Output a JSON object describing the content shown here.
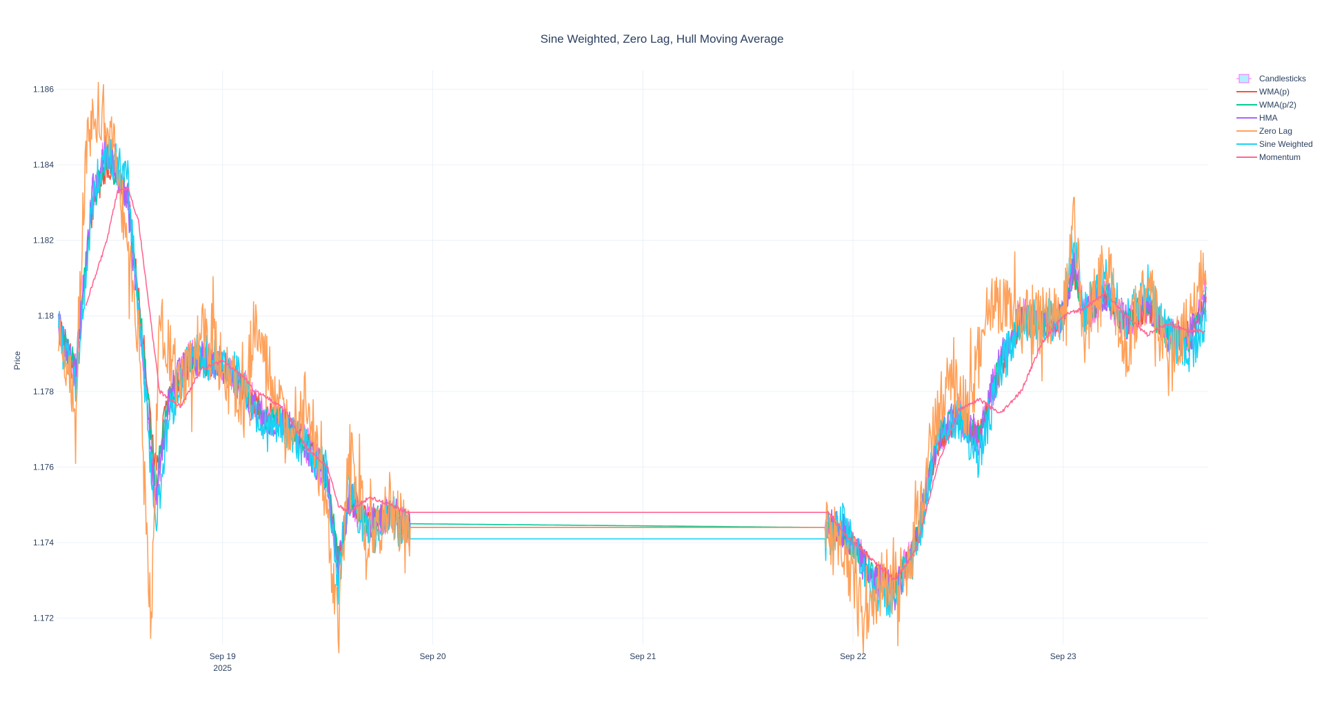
{
  "chart_data": {
    "type": "line",
    "title": "Sine Weighted, Zero Lag, Hull Moving Average",
    "ylabel": "Price",
    "xlabel": "",
    "ylim": [
      1.1713,
      1.1865
    ],
    "y_ticks": [
      "1.172",
      "1.174",
      "1.176",
      "1.178",
      "1.18",
      "1.182",
      "1.184",
      "1.186"
    ],
    "y_tick_values": [
      1.172,
      1.174,
      1.176,
      1.178,
      1.18,
      1.182,
      1.184,
      1.186
    ],
    "x_ticks": [
      {
        "label": "Sep 19",
        "sub": "2025",
        "day": 19
      },
      {
        "label": "Sep 20",
        "sub": "",
        "day": 20
      },
      {
        "label": "Sep 21",
        "sub": "",
        "day": 21
      },
      {
        "label": "Sep 22",
        "sub": "",
        "day": 22
      },
      {
        "label": "Sep 23",
        "sub": "",
        "day": 23
      }
    ],
    "xlim_days": [
      18.21,
      23.69
    ],
    "grid": true,
    "legend_position": "top-right",
    "series": [
      {
        "name": "Candlesticks",
        "color": "#ff66ff",
        "fill": "#b3f0ff",
        "kind": "candle"
      },
      {
        "name": "WMA(p)",
        "color": "#EF553B",
        "kind": "line"
      },
      {
        "name": "WMA(p/2)",
        "color": "#00CC96",
        "kind": "line"
      },
      {
        "name": "HMA",
        "color": "#AB63FA",
        "kind": "line"
      },
      {
        "name": "Zero Lag",
        "color": "#FFA15A",
        "kind": "line"
      },
      {
        "name": "Sine Weighted",
        "color": "#19D3F3",
        "kind": "line"
      },
      {
        "name": "Momentum",
        "color": "#FF6692",
        "kind": "line"
      }
    ],
    "key_points": {
      "Momentum": [
        [
          18.35,
          1.1803
        ],
        [
          18.45,
          1.182
        ],
        [
          18.5,
          1.1833
        ],
        [
          18.55,
          1.1834
        ],
        [
          18.6,
          1.1825
        ],
        [
          18.7,
          1.178
        ],
        [
          18.8,
          1.1776
        ],
        [
          18.9,
          1.1786
        ],
        [
          19.0,
          1.1788
        ],
        [
          19.1,
          1.1784
        ],
        [
          19.15,
          1.178
        ],
        [
          19.2,
          1.1779
        ],
        [
          19.3,
          1.1775
        ],
        [
          19.4,
          1.1765
        ],
        [
          19.5,
          1.176
        ],
        [
          19.55,
          1.175
        ],
        [
          19.6,
          1.1748
        ],
        [
          19.7,
          1.1752
        ],
        [
          19.8,
          1.175
        ],
        [
          19.88,
          1.1748
        ],
        [
          21.88,
          1.1748
        ],
        [
          21.95,
          1.1743
        ],
        [
          22.1,
          1.1735
        ],
        [
          22.2,
          1.173
        ],
        [
          22.3,
          1.1738
        ],
        [
          22.4,
          1.176
        ],
        [
          22.5,
          1.1775
        ],
        [
          22.6,
          1.1778
        ],
        [
          22.7,
          1.1774
        ],
        [
          22.8,
          1.178
        ],
        [
          22.9,
          1.1793
        ],
        [
          23.0,
          1.18
        ],
        [
          23.1,
          1.1802
        ],
        [
          23.2,
          1.1806
        ],
        [
          23.3,
          1.18
        ],
        [
          23.4,
          1.1795
        ],
        [
          23.5,
          1.1798
        ],
        [
          23.6,
          1.1796
        ],
        [
          23.68,
          1.1796
        ]
      ],
      "Sine Weighted": [
        [
          18.22,
          1.1796
        ],
        [
          18.3,
          1.178
        ],
        [
          18.38,
          1.183
        ],
        [
          18.45,
          1.1845
        ],
        [
          18.55,
          1.1835
        ],
        [
          18.62,
          1.179
        ],
        [
          18.68,
          1.1745
        ],
        [
          18.75,
          1.1775
        ],
        [
          18.85,
          1.179
        ],
        [
          19.0,
          1.1788
        ],
        [
          19.1,
          1.1782
        ],
        [
          19.2,
          1.177
        ],
        [
          19.3,
          1.177
        ],
        [
          19.4,
          1.1765
        ],
        [
          19.5,
          1.1758
        ],
        [
          19.55,
          1.1728
        ],
        [
          19.6,
          1.1755
        ],
        [
          19.7,
          1.174
        ],
        [
          19.8,
          1.1748
        ],
        [
          19.88,
          1.1741
        ],
        [
          21.88,
          1.1741
        ],
        [
          21.95,
          1.1745
        ],
        [
          22.1,
          1.1728
        ],
        [
          22.2,
          1.1725
        ],
        [
          22.3,
          1.1738
        ],
        [
          22.4,
          1.1768
        ],
        [
          22.5,
          1.1774
        ],
        [
          22.6,
          1.1762
        ],
        [
          22.7,
          1.1785
        ],
        [
          22.8,
          1.18
        ],
        [
          22.9,
          1.1798
        ],
        [
          23.0,
          1.18
        ],
        [
          23.05,
          1.1822
        ],
        [
          23.1,
          1.18
        ],
        [
          23.2,
          1.181
        ],
        [
          23.3,
          1.1798
        ],
        [
          23.4,
          1.1808
        ],
        [
          23.5,
          1.1795
        ],
        [
          23.6,
          1.179
        ],
        [
          23.68,
          1.1798
        ]
      ],
      "Zero Lag": [
        [
          18.22,
          1.1797
        ],
        [
          18.3,
          1.1778
        ],
        [
          18.35,
          1.1845
        ],
        [
          18.42,
          1.1855
        ],
        [
          18.5,
          1.184
        ],
        [
          18.6,
          1.1795
        ],
        [
          18.66,
          1.1715
        ],
        [
          18.7,
          1.18
        ],
        [
          18.8,
          1.178
        ],
        [
          18.9,
          1.1795
        ],
        [
          19.0,
          1.1788
        ],
        [
          19.1,
          1.1775
        ],
        [
          19.15,
          1.1797
        ],
        [
          19.3,
          1.177
        ],
        [
          19.4,
          1.178
        ],
        [
          19.5,
          1.1745
        ],
        [
          19.55,
          1.1715
        ],
        [
          19.6,
          1.1765
        ],
        [
          19.7,
          1.174
        ],
        [
          19.8,
          1.1748
        ],
        [
          19.88,
          1.1744
        ],
        [
          21.88,
          1.1744
        ],
        [
          21.95,
          1.1738
        ],
        [
          22.05,
          1.1722
        ],
        [
          22.15,
          1.173
        ],
        [
          22.25,
          1.173
        ],
        [
          22.35,
          1.176
        ],
        [
          22.45,
          1.1785
        ],
        [
          22.55,
          1.1775
        ],
        [
          22.65,
          1.1805
        ],
        [
          22.75,
          1.18
        ],
        [
          22.85,
          1.1798
        ],
        [
          23.0,
          1.18
        ],
        [
          23.05,
          1.1828
        ],
        [
          23.1,
          1.1795
        ],
        [
          23.2,
          1.1815
        ],
        [
          23.3,
          1.179
        ],
        [
          23.4,
          1.1812
        ],
        [
          23.5,
          1.1785
        ],
        [
          23.6,
          1.18
        ],
        [
          23.68,
          1.1815
        ]
      ],
      "HMA": [
        [
          18.22,
          1.1797
        ],
        [
          18.3,
          1.1785
        ],
        [
          18.38,
          1.1832
        ],
        [
          18.45,
          1.1845
        ],
        [
          18.55,
          1.183
        ],
        [
          18.62,
          1.179
        ],
        [
          18.68,
          1.175
        ],
        [
          18.75,
          1.178
        ],
        [
          18.85,
          1.1789
        ],
        [
          19.0,
          1.1787
        ],
        [
          19.1,
          1.178
        ],
        [
          19.2,
          1.1772
        ],
        [
          19.3,
          1.1772
        ],
        [
          19.4,
          1.1766
        ],
        [
          19.5,
          1.1756
        ],
        [
          19.55,
          1.1732
        ],
        [
          19.6,
          1.1752
        ],
        [
          19.7,
          1.1745
        ],
        [
          19.8,
          1.1748
        ],
        [
          19.88,
          1.1744
        ],
        [
          21.88,
          1.1744
        ],
        [
          21.95,
          1.1743
        ],
        [
          22.1,
          1.173
        ],
        [
          22.2,
          1.1727
        ],
        [
          22.3,
          1.174
        ],
        [
          22.4,
          1.1768
        ],
        [
          22.5,
          1.1774
        ],
        [
          22.6,
          1.1768
        ],
        [
          22.7,
          1.1788
        ],
        [
          22.8,
          1.18
        ],
        [
          22.9,
          1.1798
        ],
        [
          23.0,
          1.18
        ],
        [
          23.05,
          1.1815
        ],
        [
          23.1,
          1.18
        ],
        [
          23.2,
          1.1806
        ],
        [
          23.3,
          1.1798
        ],
        [
          23.4,
          1.1804
        ],
        [
          23.5,
          1.1795
        ],
        [
          23.6,
          1.1794
        ],
        [
          23.68,
          1.1805
        ]
      ],
      "WMA(p)": [
        [
          18.22,
          1.1797
        ],
        [
          18.3,
          1.1787
        ],
        [
          18.38,
          1.1828
        ],
        [
          18.45,
          1.184
        ],
        [
          18.55,
          1.1832
        ],
        [
          18.62,
          1.1795
        ],
        [
          18.68,
          1.176
        ],
        [
          18.75,
          1.178
        ],
        [
          18.85,
          1.1788
        ],
        [
          19.0,
          1.1787
        ],
        [
          19.1,
          1.178
        ],
        [
          19.2,
          1.1774
        ],
        [
          19.3,
          1.1772
        ],
        [
          19.4,
          1.1767
        ],
        [
          19.5,
          1.1758
        ],
        [
          19.55,
          1.1736
        ],
        [
          19.6,
          1.175
        ],
        [
          19.7,
          1.1746
        ],
        [
          19.8,
          1.1748
        ],
        [
          19.88,
          1.1744
        ],
        [
          21.88,
          1.1744
        ],
        [
          21.95,
          1.1743
        ],
        [
          22.1,
          1.1732
        ],
        [
          22.2,
          1.1729
        ],
        [
          22.3,
          1.174
        ],
        [
          22.4,
          1.1766
        ],
        [
          22.5,
          1.1773
        ],
        [
          22.6,
          1.1769
        ],
        [
          22.7,
          1.1786
        ],
        [
          22.8,
          1.1799
        ],
        [
          22.9,
          1.1798
        ],
        [
          23.0,
          1.18
        ],
        [
          23.05,
          1.1812
        ],
        [
          23.1,
          1.1801
        ],
        [
          23.2,
          1.1805
        ],
        [
          23.3,
          1.1798
        ],
        [
          23.4,
          1.1802
        ],
        [
          23.5,
          1.1796
        ],
        [
          23.6,
          1.1795
        ],
        [
          23.68,
          1.1803
        ]
      ],
      "WMA(p/2)": [
        [
          18.22,
          1.1797
        ],
        [
          18.3,
          1.1786
        ],
        [
          18.38,
          1.183
        ],
        [
          18.45,
          1.1842
        ],
        [
          18.55,
          1.1831
        ],
        [
          18.62,
          1.1793
        ],
        [
          18.68,
          1.1755
        ],
        [
          18.75,
          1.178
        ],
        [
          18.85,
          1.1789
        ],
        [
          19.0,
          1.1787
        ],
        [
          19.1,
          1.1781
        ],
        [
          19.2,
          1.1773
        ],
        [
          19.3,
          1.1772
        ],
        [
          19.4,
          1.1766
        ],
        [
          19.5,
          1.1757
        ],
        [
          19.55,
          1.1734
        ],
        [
          19.6,
          1.1751
        ],
        [
          19.7,
          1.1745
        ],
        [
          19.8,
          1.1748
        ],
        [
          19.88,
          1.1745
        ],
        [
          21.88,
          1.1744
        ],
        [
          21.95,
          1.1743
        ],
        [
          22.1,
          1.1731
        ],
        [
          22.2,
          1.1728
        ],
        [
          22.3,
          1.174
        ],
        [
          22.4,
          1.1767
        ],
        [
          22.5,
          1.1774
        ],
        [
          22.6,
          1.1768
        ],
        [
          22.7,
          1.1787
        ],
        [
          22.8,
          1.18
        ],
        [
          22.9,
          1.1798
        ],
        [
          23.0,
          1.18
        ],
        [
          23.05,
          1.1813
        ],
        [
          23.1,
          1.18
        ],
        [
          23.2,
          1.1806
        ],
        [
          23.3,
          1.1798
        ],
        [
          23.4,
          1.1803
        ],
        [
          23.5,
          1.1795
        ],
        [
          23.6,
          1.1794
        ],
        [
          23.68,
          1.1804
        ]
      ],
      "Candlesticks": [
        [
          18.22,
          1.1797
        ],
        [
          18.3,
          1.1785
        ],
        [
          18.38,
          1.1832
        ],
        [
          18.45,
          1.1845
        ],
        [
          18.55,
          1.1832
        ],
        [
          18.62,
          1.1792
        ],
        [
          18.68,
          1.1752
        ],
        [
          18.75,
          1.178
        ],
        [
          18.85,
          1.1789
        ],
        [
          19.0,
          1.1787
        ],
        [
          19.1,
          1.1781
        ],
        [
          19.2,
          1.1773
        ],
        [
          19.3,
          1.1772
        ],
        [
          19.4,
          1.1766
        ],
        [
          19.5,
          1.1757
        ],
        [
          19.55,
          1.1733
        ],
        [
          19.6,
          1.1752
        ],
        [
          19.7,
          1.1745
        ],
        [
          19.8,
          1.1748
        ],
        [
          19.88,
          1.1744
        ],
        [
          21.88,
          1.1744
        ],
        [
          21.95,
          1.1743
        ],
        [
          22.1,
          1.1731
        ],
        [
          22.2,
          1.1728
        ],
        [
          22.3,
          1.174
        ],
        [
          22.4,
          1.1767
        ],
        [
          22.5,
          1.1774
        ],
        [
          22.6,
          1.1768
        ],
        [
          22.7,
          1.1787
        ],
        [
          22.8,
          1.18
        ],
        [
          22.9,
          1.1798
        ],
        [
          23.0,
          1.18
        ],
        [
          23.05,
          1.1814
        ],
        [
          23.1,
          1.18
        ],
        [
          23.2,
          1.1806
        ],
        [
          23.3,
          1.1798
        ],
        [
          23.4,
          1.1803
        ],
        [
          23.5,
          1.1795
        ],
        [
          23.6,
          1.1794
        ],
        [
          23.68,
          1.1806
        ]
      ]
    }
  }
}
